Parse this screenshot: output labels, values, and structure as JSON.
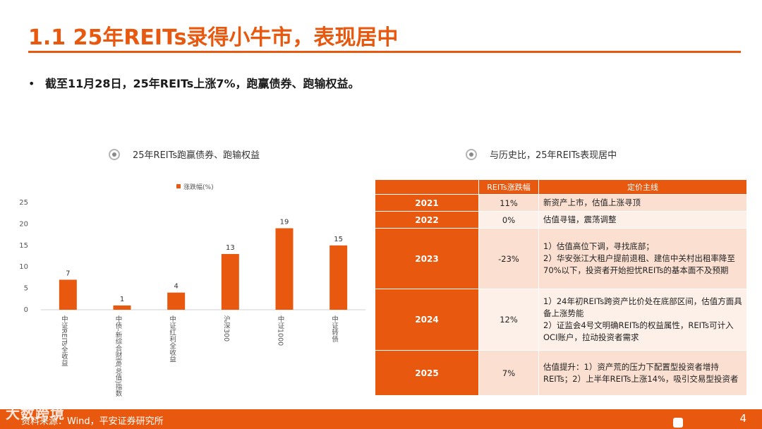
{
  "header": {
    "title": "1.1 25年REITs录得小牛市，表现居中"
  },
  "bullet": {
    "marker": "•",
    "text": "截至11月28日，25年REITs上涨7%，跑赢债券、跑输权益。"
  },
  "left_section": {
    "title": "25年REITs跑赢债券、跑输权益"
  },
  "right_section": {
    "title": "与历史比，25年REITs表现居中"
  },
  "chart_data": {
    "type": "bar",
    "categories": [
      "中证REITs全收益",
      "中债-新综合财富(总值)指数",
      "中证红利全收益",
      "沪深300",
      "中证1000",
      "中证转债"
    ],
    "series": [
      {
        "name": "涨跌幅(%)",
        "values": [
          7,
          1,
          4,
          13,
          19,
          15
        ]
      }
    ],
    "data_labels": [
      "7",
      "1",
      "4",
      "13",
      "19",
      "15"
    ],
    "ylim": [
      0,
      25
    ],
    "yticks": [
      "0",
      "5",
      "10",
      "15",
      "20",
      "25"
    ],
    "legend_position": "top",
    "grid": false,
    "color": "#e8580f"
  },
  "table": {
    "headers": [
      "",
      "REITs涨跌幅",
      "定价主线"
    ],
    "rows": [
      {
        "year": "2021",
        "change": "11%",
        "desc": [
          "新资产上市，估值上涨寻顶"
        ]
      },
      {
        "year": "2022",
        "change": "0%",
        "desc": [
          "估值寻锚，震荡调整"
        ]
      },
      {
        "year": "2023",
        "change": "-23%",
        "desc": [
          "1）估值高位下调，寻找底部；",
          "2）华安张江大租户提前退租、建信中关村出租率降至70%以下，投资者开始担忧REITs的基本面不及预期"
        ]
      },
      {
        "year": "2024",
        "change": "12%",
        "desc": [
          "1）24年初REITs跨资产比价处在底部区间，估值方面具备上涨势能",
          "2）证监会4号文明确REITs的权益属性，REITs可计入OCI账户，拉动投资者需求"
        ]
      },
      {
        "year": "2025",
        "change": "7%",
        "desc": [
          "估值提升：1）资产荒的压力下配置型投资者增持REITs；2）上半年REITs上涨14%，吸引交易型投资者"
        ]
      }
    ]
  },
  "footer": {
    "source": "资料来源：Wind，平安证券研究所",
    "page": "4",
    "watermark": "大数跨境"
  },
  "colors": {
    "accent": "#e8580f",
    "cell_light": "#fbe0d1",
    "cell_lighter": "#fdf0e8"
  }
}
